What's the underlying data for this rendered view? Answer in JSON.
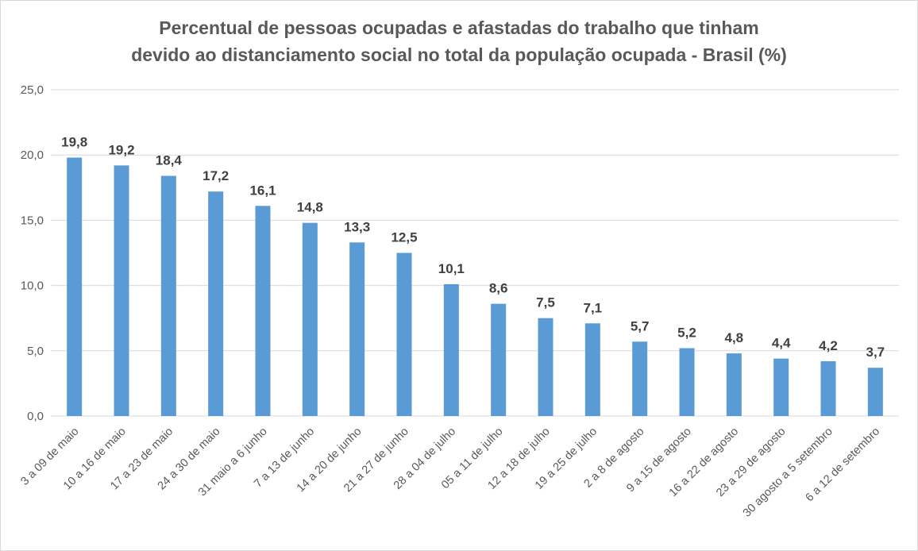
{
  "chart_data": {
    "type": "bar",
    "title_lines": [
      "Percentual de pessoas ocupadas e afastadas do trabalho que tinham",
      "devido ao distanciamento social no total da população ocupada - Brasil (%)"
    ],
    "xlabel": "",
    "ylabel": "",
    "ylim": [
      0,
      25
    ],
    "yticks": [
      "0,0",
      "5,0",
      "10,0",
      "15,0",
      "20,0",
      "25,0"
    ],
    "grid": true,
    "color": "#5b9bd5",
    "categories": [
      "3 a 09 de maio",
      "10 a 16 de maio",
      "17 a 23 de maio",
      "24 a 30 de maio",
      "31 maio a 6  junho",
      "7 a 13 de junho",
      "14 a 20 de junho",
      "21 a 27 de junho",
      "28 a 04 de julho",
      "05 a 11 de julho",
      "12 a 18 de julho",
      "19 a 25 de julho",
      "2 a 8 de agosto",
      "9 a 15 de agosto",
      "16 a 22 de agosto",
      "23 a 29 de agosto",
      "30 agosto a 5 setembro",
      "6 a 12 de setembro"
    ],
    "values": [
      19.8,
      19.2,
      18.4,
      17.2,
      16.1,
      14.8,
      13.3,
      12.5,
      10.1,
      8.6,
      7.5,
      7.1,
      5.7,
      5.2,
      4.8,
      4.4,
      4.2,
      3.7
    ],
    "value_labels": [
      "19,8",
      "19,2",
      "18,4",
      "17,2",
      "16,1",
      "14,8",
      "13,3",
      "12,5",
      "10,1",
      "8,6",
      "7,5",
      "7,1",
      "5,7",
      "5,2",
      "4,8",
      "4,4",
      "4,2",
      "3,7"
    ]
  }
}
